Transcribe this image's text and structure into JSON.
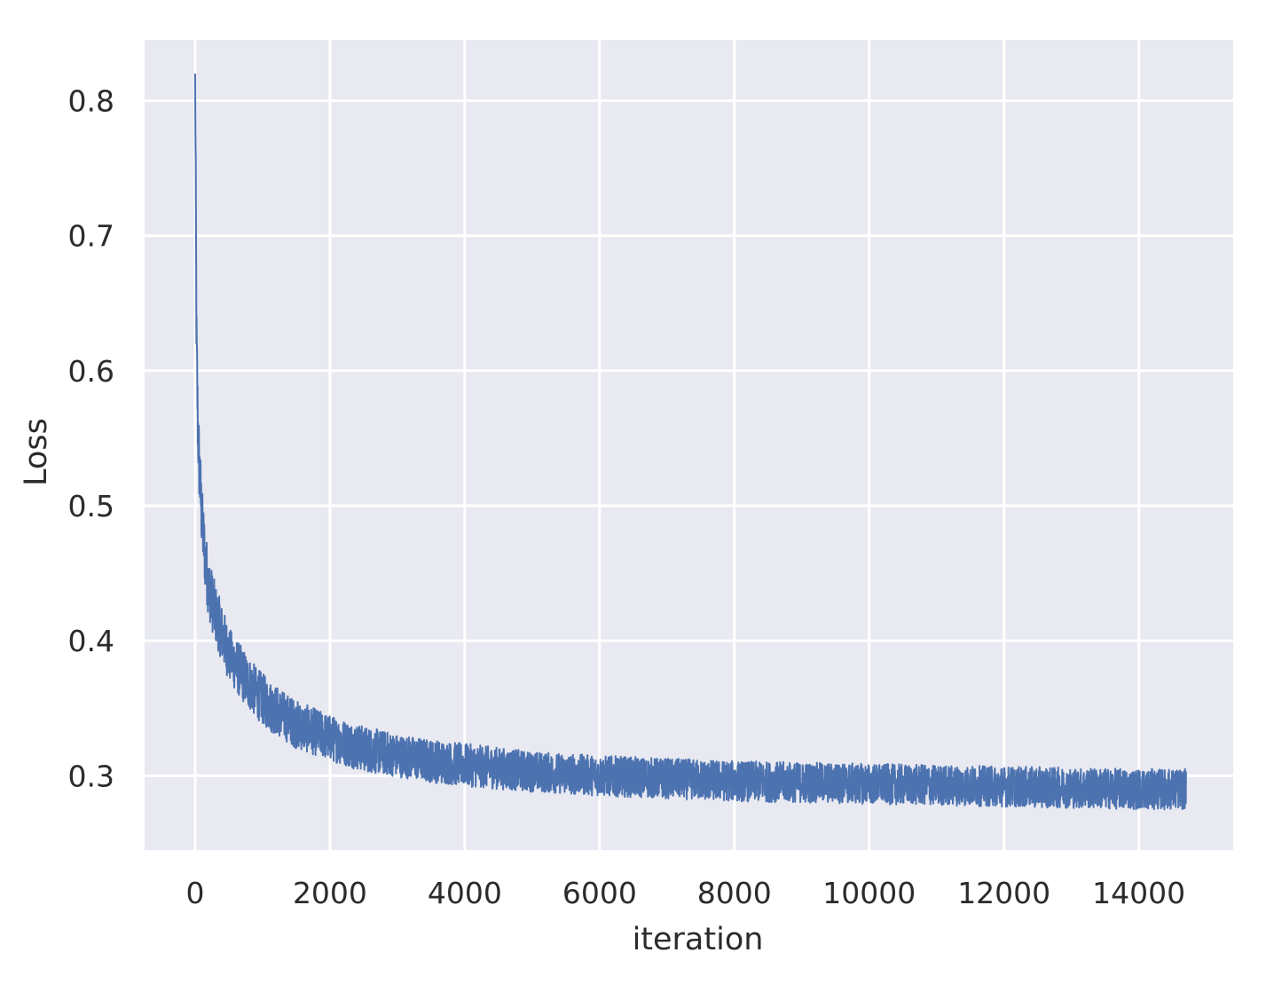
{
  "colors": {
    "plot_background": "#e8e9f1",
    "grid": "#ffffff",
    "series_line": "#4c72b0",
    "text": "#2b2b2b"
  },
  "chart_data": {
    "type": "line",
    "title": "",
    "xlabel": "iteration",
    "ylabel": "Loss",
    "xlim": [
      -750,
      15400
    ],
    "ylim": [
      0.245,
      0.845
    ],
    "x_ticks": [
      0,
      2000,
      4000,
      6000,
      8000,
      10000,
      12000,
      14000
    ],
    "x_tick_labels": [
      "0",
      "2000",
      "4000",
      "6000",
      "8000",
      "10000",
      "12000",
      "14000"
    ],
    "y_ticks": [
      0.3,
      0.4,
      0.5,
      0.6,
      0.7,
      0.8
    ],
    "y_tick_labels": [
      "0.3",
      "0.4",
      "0.5",
      "0.6",
      "0.7",
      "0.8"
    ],
    "grid": true,
    "legend": "none",
    "series": [
      {
        "x": [
          0,
          10,
          20,
          40,
          60,
          80,
          100,
          150,
          200,
          300,
          400,
          500,
          700,
          900,
          1100,
          1300,
          1500,
          2000,
          2500,
          3000,
          3500,
          4000,
          5000,
          6000,
          7000,
          8000,
          9000,
          10000,
          11000,
          12000,
          13000,
          14000,
          14700
        ],
        "y": [
          0.82,
          0.72,
          0.62,
          0.56,
          0.53,
          0.51,
          0.49,
          0.46,
          0.44,
          0.42,
          0.405,
          0.39,
          0.375,
          0.362,
          0.352,
          0.345,
          0.338,
          0.328,
          0.32,
          0.315,
          0.311,
          0.308,
          0.303,
          0.3,
          0.298,
          0.296,
          0.295,
          0.294,
          0.293,
          0.292,
          0.291,
          0.29,
          0.29
        ],
        "noise_band": [
          0.0,
          0.03,
          0.03,
          0.028,
          0.027,
          0.026,
          0.025,
          0.024,
          0.023,
          0.022,
          0.021,
          0.02,
          0.02,
          0.019,
          0.019,
          0.018,
          0.018,
          0.017,
          0.017,
          0.016,
          0.016,
          0.016,
          0.015,
          0.015,
          0.015,
          0.015,
          0.015,
          0.015,
          0.015,
          0.015,
          0.015,
          0.015,
          0.015
        ]
      }
    ]
  }
}
